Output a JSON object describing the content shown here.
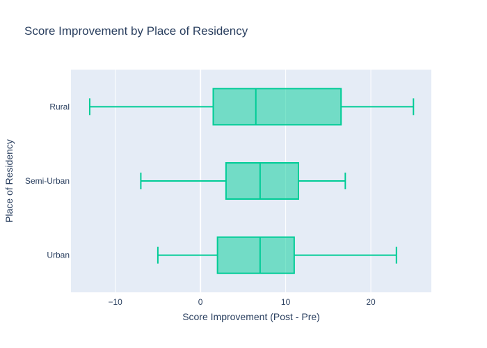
{
  "chart_data": {
    "type": "box",
    "orientation": "horizontal",
    "title": "Score Improvement by Place of Residency",
    "xlabel": "Score Improvement (Post - Pre)",
    "ylabel": "Place of Residency",
    "xlim": [
      -15.2,
      27.1
    ],
    "x_ticks": [
      -10,
      0,
      10,
      20
    ],
    "x_tick_labels": [
      "−10",
      "0",
      "10",
      "20"
    ],
    "grid": true,
    "legend": "none",
    "colors": {
      "plot_bg": "#e5ecf6",
      "grid": "#ffffff",
      "box_line": "#00cc96",
      "box_fill": "#00cc96"
    },
    "series": [
      {
        "category": "Rural",
        "min": -13,
        "q1": 1.5,
        "median": 6.5,
        "q3": 16.5,
        "max": 25
      },
      {
        "category": "Semi-Urban",
        "min": -7,
        "q1": 3,
        "median": 7,
        "q3": 11.5,
        "max": 17
      },
      {
        "category": "Urban",
        "min": -5,
        "q1": 2,
        "median": 7,
        "q3": 11,
        "max": 23
      }
    ]
  }
}
